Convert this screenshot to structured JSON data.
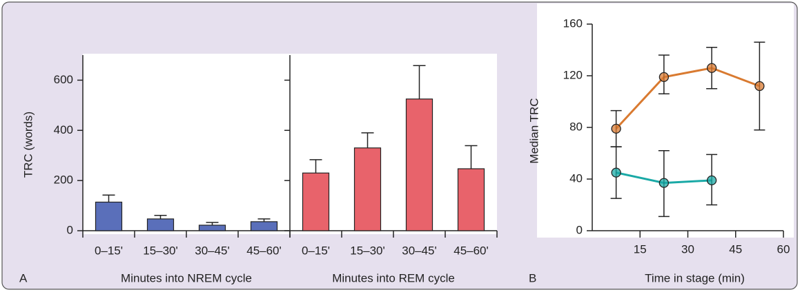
{
  "chart_data": [
    {
      "type": "bar",
      "panel": "A",
      "ylabel": "TRC (words)",
      "ylim": [
        0,
        700
      ],
      "yticks": [
        0,
        200,
        400,
        600
      ],
      "categories": [
        "0–15'",
        "15–30'",
        "30–45'",
        "45–60'"
      ],
      "series": [
        {
          "xlabel": "Minutes into NREM cycle",
          "color": "#5a6fba",
          "values": [
            114,
            47,
            22,
            36
          ],
          "errors": [
            28,
            14,
            11,
            11
          ]
        },
        {
          "xlabel": "Minutes into REM cycle",
          "color": "#e8636b",
          "values": [
            230,
            330,
            525,
            247
          ],
          "errors": [
            53,
            60,
            133,
            92
          ]
        }
      ]
    },
    {
      "type": "line",
      "panel": "B",
      "xlabel": "Time in stage (min)",
      "ylabel": "Median TRC",
      "xlim": [
        0,
        60
      ],
      "xticks": [
        15,
        30,
        45,
        60
      ],
      "ylim": [
        0,
        160
      ],
      "yticks": [
        0,
        40,
        80,
        120,
        160
      ],
      "series": [
        {
          "color": "#d97a30",
          "x": [
            7.5,
            22.5,
            37.5,
            52.5
          ],
          "values": [
            79,
            119,
            126,
            112
          ],
          "lower": [
            65,
            106,
            110,
            78
          ],
          "upper": [
            93,
            136,
            142,
            146
          ]
        },
        {
          "color": "#1aa9a6",
          "x": [
            7.5,
            22.5,
            37.5
          ],
          "values": [
            45,
            37,
            39
          ],
          "lower": [
            25,
            11,
            20
          ],
          "upper": [
            65,
            62,
            59
          ]
        }
      ]
    }
  ]
}
